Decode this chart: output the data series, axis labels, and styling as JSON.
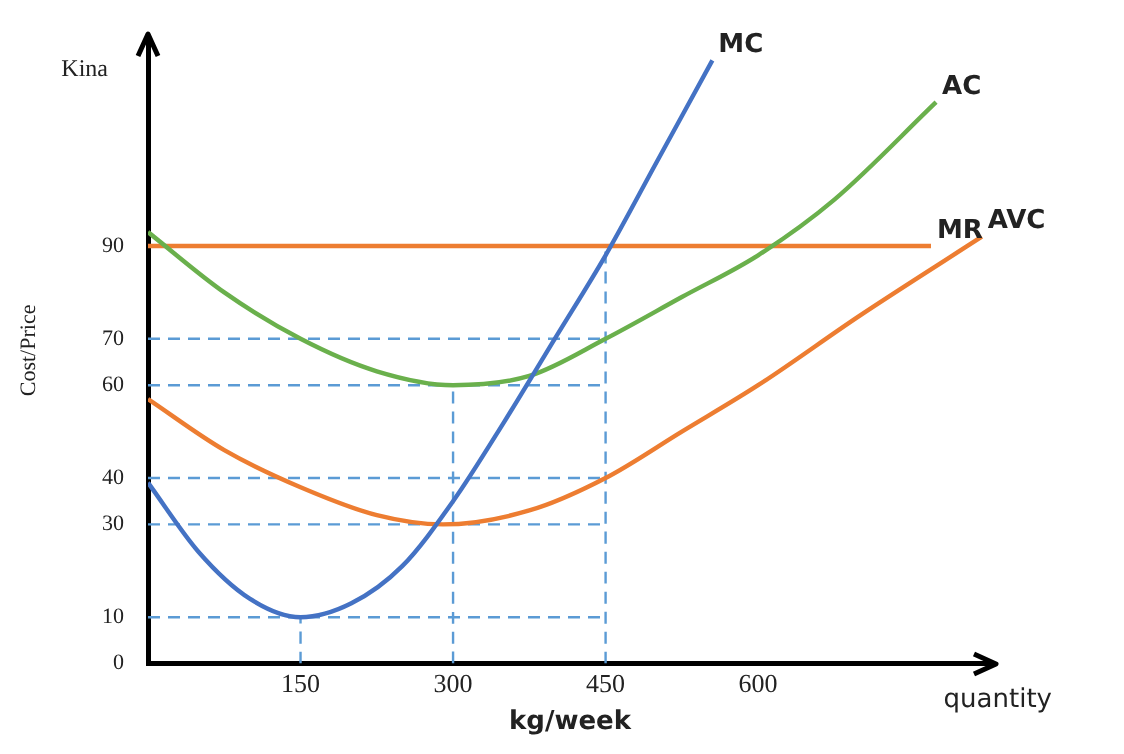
{
  "chart_data": {
    "type": "line",
    "ylabel": "Cost/Price",
    "xlabel": "kg/week",
    "annotations": [
      "Kina",
      "quantity"
    ],
    "xlim": [
      0,
      830
    ],
    "ylim": [
      0,
      135
    ],
    "xticks": [
      150,
      300,
      450,
      600
    ],
    "yticks": [
      0,
      10,
      30,
      40,
      60,
      70,
      90
    ],
    "grid": false,
    "legend": false,
    "marker": "none",
    "series": [
      {
        "name": "MC",
        "color": "#4472c4",
        "x": [
          0,
          50,
          100,
          150,
          200,
          250,
          300,
          350,
          400,
          450,
          500,
          555
        ],
        "values": [
          39,
          24,
          14,
          10,
          13,
          21,
          35,
          52,
          70,
          88,
          108,
          130
        ]
      },
      {
        "name": "AC",
        "color": "#6ab04c",
        "x": [
          0,
          75,
          150,
          225,
          300,
          375,
          450,
          525,
          600,
          675,
          775
        ],
        "values": [
          93,
          80,
          70,
          63,
          60,
          62,
          70,
          79,
          88,
          100,
          121
        ]
      },
      {
        "name": "MR",
        "color": "#ed7d31",
        "x": [
          0,
          770
        ],
        "values": [
          90,
          90
        ]
      },
      {
        "name": "AVC",
        "color": "#ed7d31",
        "x": [
          0,
          75,
          150,
          225,
          290,
          375,
          450,
          525,
          600,
          700,
          820
        ],
        "values": [
          57,
          46,
          38,
          32,
          30,
          33,
          40,
          50,
          60,
          75,
          92
        ]
      },
      {
        "type": "line",
        "color": "#5b9bd5",
        "line_style": "dashed",
        "x": [
          0,
          450
        ],
        "values": [
          70,
          70
        ]
      },
      {
        "type": "line",
        "color": "#5b9bd5",
        "line_style": "dashed",
        "x": [
          0,
          450
        ],
        "values": [
          60,
          60
        ]
      },
      {
        "type": "line",
        "color": "#5b9bd5",
        "line_style": "dashed",
        "x": [
          0,
          450
        ],
        "values": [
          40,
          40
        ]
      },
      {
        "type": "line",
        "color": "#5b9bd5",
        "line_style": "dashed",
        "x": [
          0,
          450
        ],
        "values": [
          30,
          30
        ]
      },
      {
        "type": "line",
        "color": "#5b9bd5",
        "line_style": "dashed",
        "x": [
          0,
          450
        ],
        "values": [
          10,
          10
        ]
      },
      {
        "type": "line",
        "color": "#5b9bd5",
        "line_style": "dashed",
        "x": [
          150,
          150
        ],
        "values": [
          0,
          10
        ]
      },
      {
        "type": "line",
        "color": "#5b9bd5",
        "line_style": "dashed",
        "x": [
          300,
          300
        ],
        "values": [
          0,
          60
        ]
      },
      {
        "type": "line",
        "color": "#5b9bd5",
        "line_style": "dashed",
        "x": [
          450,
          450
        ],
        "values": [
          0,
          90
        ]
      }
    ]
  }
}
